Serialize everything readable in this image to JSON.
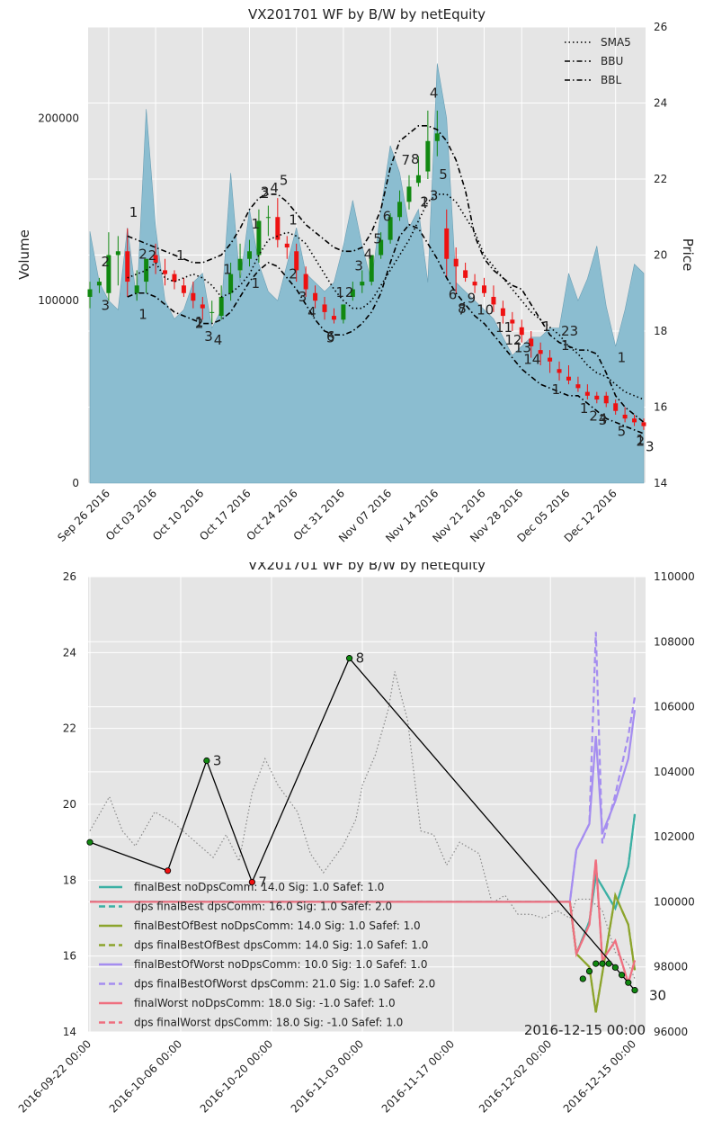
{
  "colors": {
    "plot_bg": "#e5e5e5",
    "grid": "#ffffff",
    "volume_fill": "#8bbdd0",
    "up_candle": "#118811",
    "down_candle": "#ee1111",
    "sma": "#000000",
    "bb": "#000000",
    "equity_path": "#000000",
    "price_dotted": "#888888",
    "final_best": "#3bb0a4",
    "final_best_of_best": "#8ca42c",
    "final_best_of_worst": "#a58df0",
    "final_worst": "#ef6f7f"
  },
  "chart_data": [
    {
      "type": "candlestick",
      "title": "VX201701 WF by B/W by netEquity",
      "ylabel": "Volume",
      "y2label": "Price",
      "ylim": [
        0,
        250000
      ],
      "y2lim": [
        14,
        26
      ],
      "yticks": [
        "0",
        "100000",
        "200000"
      ],
      "y2ticks": [
        "14",
        "16",
        "18",
        "20",
        "22",
        "24",
        "26"
      ],
      "xticks": [
        "Sep 26 2016",
        "Oct 03 2016",
        "Oct 10 2016",
        "Oct 17 2016",
        "Oct 24 2016",
        "Oct 31 2016",
        "Nov 07 2016",
        "Nov 14 2016",
        "Nov 21 2016",
        "Nov 28 2016",
        "Dec 05 2016",
        "Dec 12 2016"
      ],
      "legend": [
        "SMA5",
        "BBU",
        "BBL"
      ],
      "legend_position": "top-right",
      "grid": true,
      "x": [
        "2016-09-22",
        "2016-09-23",
        "2016-09-26",
        "2016-09-27",
        "2016-09-28",
        "2016-09-29",
        "2016-09-30",
        "2016-10-03",
        "2016-10-04",
        "2016-10-05",
        "2016-10-06",
        "2016-10-07",
        "2016-10-10",
        "2016-10-11",
        "2016-10-12",
        "2016-10-13",
        "2016-10-14",
        "2016-10-17",
        "2016-10-18",
        "2016-10-19",
        "2016-10-20",
        "2016-10-21",
        "2016-10-24",
        "2016-10-25",
        "2016-10-26",
        "2016-10-27",
        "2016-10-28",
        "2016-10-31",
        "2016-11-01",
        "2016-11-02",
        "2016-11-03",
        "2016-11-04",
        "2016-11-07",
        "2016-11-08",
        "2016-11-09",
        "2016-11-10",
        "2016-11-11",
        "2016-11-14",
        "2016-11-15",
        "2016-11-16",
        "2016-11-17",
        "2016-11-18",
        "2016-11-21",
        "2016-11-22",
        "2016-11-23",
        "2016-11-25",
        "2016-11-28",
        "2016-11-29",
        "2016-11-30",
        "2016-12-01",
        "2016-12-02",
        "2016-12-05",
        "2016-12-06",
        "2016-12-07",
        "2016-12-08",
        "2016-12-09",
        "2016-12-12",
        "2016-12-13",
        "2016-12-14",
        "2016-12-15"
      ],
      "open": [
        18.9,
        19.2,
        19.0,
        20.0,
        20.1,
        19.0,
        19.3,
        20.0,
        19.6,
        19.5,
        19.2,
        19.0,
        18.7,
        18.5,
        18.4,
        19.0,
        19.6,
        19.9,
        20.0,
        21.0,
        21.0,
        20.3,
        20.1,
        19.5,
        19.0,
        18.7,
        18.4,
        18.3,
        18.9,
        19.2,
        19.3,
        20.0,
        20.4,
        21.0,
        21.4,
        21.9,
        22.2,
        23.0,
        20.7,
        19.9,
        19.6,
        19.3,
        19.2,
        18.9,
        18.6,
        18.3,
        18.1,
        17.8,
        17.5,
        17.3,
        17.0,
        16.8,
        16.6,
        16.4,
        16.3,
        16.3,
        16.1,
        15.8,
        15.7,
        15.6
      ],
      "high": [
        19.3,
        19.4,
        20.6,
        20.5,
        20.7,
        19.6,
        19.6,
        20.3,
        19.9,
        19.6,
        19.4,
        19.3,
        18.9,
        18.8,
        19.2,
        19.8,
        20.3,
        20.4,
        21.2,
        21.3,
        21.5,
        20.5,
        20.3,
        19.7,
        19.2,
        18.9,
        18.6,
        18.6,
        19.3,
        19.6,
        20.0,
        20.6,
        21.1,
        21.7,
        22.1,
        22.6,
        23.8,
        23.8,
        21.2,
        20.2,
        19.8,
        19.5,
        19.4,
        19.2,
        18.8,
        18.5,
        18.3,
        18.0,
        17.7,
        17.5,
        17.2,
        17.1,
        16.8,
        16.6,
        16.4,
        16.4,
        16.2,
        16.0,
        15.8,
        15.7
      ],
      "low": [
        18.6,
        19.0,
        18.8,
        19.2,
        18.9,
        18.8,
        19.0,
        19.5,
        19.2,
        19.1,
        18.9,
        18.6,
        18.3,
        18.2,
        18.3,
        18.8,
        19.4,
        19.7,
        19.8,
        20.5,
        20.2,
        19.9,
        19.3,
        18.9,
        18.6,
        18.3,
        18.2,
        18.2,
        18.8,
        19.0,
        19.2,
        19.9,
        20.3,
        20.9,
        21.2,
        21.8,
        22.0,
        22.6,
        19.4,
        19.0,
        19.3,
        19.0,
        18.9,
        18.5,
        18.2,
        18.0,
        17.7,
        17.3,
        17.1,
        16.9,
        16.7,
        16.6,
        16.4,
        16.2,
        16.1,
        16.0,
        15.8,
        15.6,
        15.5,
        15.4
      ],
      "close": [
        19.1,
        19.3,
        20.0,
        20.1,
        19.3,
        19.2,
        19.9,
        19.8,
        19.5,
        19.3,
        19.0,
        18.8,
        18.6,
        18.5,
        18.9,
        19.5,
        19.9,
        20.1,
        20.9,
        21.0,
        20.4,
        20.2,
        19.6,
        19.1,
        18.8,
        18.5,
        18.3,
        18.7,
        19.1,
        19.3,
        20.0,
        20.4,
        21.0,
        21.4,
        21.8,
        22.1,
        23.0,
        23.2,
        19.9,
        19.7,
        19.4,
        19.2,
        19.0,
        18.7,
        18.4,
        18.2,
        17.9,
        17.6,
        17.4,
        17.2,
        16.9,
        16.7,
        16.5,
        16.3,
        16.2,
        16.1,
        15.9,
        15.7,
        15.6,
        15.5
      ],
      "volume": [
        138000,
        110000,
        100000,
        95000,
        140000,
        100000,
        205000,
        140000,
        100000,
        90000,
        95000,
        110000,
        115000,
        85000,
        95000,
        170000,
        110000,
        150000,
        120000,
        105000,
        100000,
        120000,
        140000,
        115000,
        110000,
        105000,
        110000,
        130000,
        155000,
        130000,
        110000,
        150000,
        185000,
        170000,
        140000,
        150000,
        110000,
        230000,
        200000,
        110000,
        105000,
        100000,
        95000,
        90000,
        80000,
        70000,
        75000,
        80000,
        80000,
        85000,
        85000,
        115000,
        100000,
        112000,
        130000,
        97000,
        75000,
        95000,
        120000,
        115000
      ],
      "sma5": [
        null,
        null,
        null,
        null,
        19.4,
        19.5,
        19.6,
        19.8,
        19.4,
        19.3,
        19.4,
        19.5,
        19.4,
        19.2,
        18.9,
        19.0,
        19.2,
        19.5,
        20.0,
        20.4,
        20.5,
        20.6,
        20.5,
        20.3,
        19.9,
        19.5,
        19.1,
        18.8,
        18.6,
        18.6,
        18.8,
        19.2,
        19.6,
        20.0,
        20.4,
        20.9,
        21.4,
        21.6,
        21.6,
        21.4,
        21.0,
        20.6,
        20.0,
        19.7,
        19.4,
        19.1,
        18.8,
        18.5,
        18.3,
        18.1,
        17.9,
        17.6,
        17.4,
        17.1,
        16.9,
        16.8,
        16.6,
        16.4,
        16.3,
        16.2
      ],
      "bbu": [
        null,
        null,
        null,
        null,
        20.5,
        20.4,
        20.3,
        20.2,
        20.1,
        20.0,
        19.9,
        19.8,
        19.8,
        19.9,
        20.0,
        20.3,
        20.7,
        21.2,
        21.5,
        21.6,
        21.6,
        21.4,
        21.1,
        20.8,
        20.6,
        20.4,
        20.2,
        20.1,
        20.1,
        20.2,
        20.6,
        21.2,
        22.3,
        23.0,
        23.2,
        23.4,
        23.4,
        23.3,
        23.0,
        22.5,
        21.7,
        20.5,
        19.9,
        19.6,
        19.4,
        19.2,
        19.1,
        18.7,
        18.3,
        17.9,
        17.7,
        17.6,
        17.5,
        17.5,
        17.4,
        16.9,
        16.3,
        16.0,
        15.8,
        15.6
      ],
      "bbl": [
        null,
        null,
        null,
        null,
        18.9,
        19.0,
        19.0,
        18.9,
        18.7,
        18.5,
        18.4,
        18.3,
        18.2,
        18.2,
        18.3,
        18.5,
        18.9,
        19.3,
        19.6,
        19.8,
        19.7,
        19.4,
        19.1,
        18.7,
        18.3,
        18.0,
        17.9,
        17.9,
        18.0,
        18.2,
        18.5,
        19.0,
        19.8,
        20.5,
        20.8,
        20.7,
        20.3,
        19.9,
        19.4,
        19.0,
        18.7,
        18.4,
        18.2,
        17.9,
        17.6,
        17.3,
        17.0,
        16.8,
        16.6,
        16.5,
        16.4,
        16.3,
        16.3,
        16.1,
        15.9,
        15.7,
        15.6,
        15.5,
        15.4,
        15.3
      ],
      "annotations": [
        "1",
        "2",
        "3",
        "4",
        "5",
        "6",
        "7",
        "8",
        "9",
        "10",
        "11",
        "12",
        "13",
        "14",
        "23",
        "30"
      ]
    },
    {
      "type": "line",
      "title": "VX201701 WF by B/W by netEquity",
      "ylim": [
        14,
        26
      ],
      "y2lim": [
        96000,
        110000
      ],
      "yticks": [
        "14",
        "16",
        "18",
        "20",
        "22",
        "24",
        "26"
      ],
      "y2ticks": [
        "96000",
        "98000",
        "100000",
        "102000",
        "104000",
        "106000",
        "108000",
        "110000"
      ],
      "xticks": [
        "2016-09-22 00:00",
        "2016-10-06 00:00",
        "2016-10-20 00:00",
        "2016-11-03 00:00",
        "2016-11-17 00:00",
        "2016-12-02 00:00",
        "2016-12-15 00:00"
      ],
      "corner_label": "2016-12-15 00:00",
      "legend_position": "lower-left",
      "grid": true,
      "equity_path": {
        "x": [
          "2016-09-22",
          "2016-10-04",
          "2016-10-10",
          "2016-10-17",
          "2016-11-01",
          "2016-12-15"
        ],
        "y": [
          19.0,
          18.25,
          21.15,
          17.95,
          23.85,
          15.1
        ],
        "labels": [
          "",
          "",
          "3",
          "7",
          "8",
          "30"
        ]
      },
      "signal_points": {
        "x": [
          "2016-12-07",
          "2016-12-08",
          "2016-12-09",
          "2016-12-10",
          "2016-12-11",
          "2016-12-12",
          "2016-12-13",
          "2016-12-14"
        ],
        "y": [
          15.4,
          15.6,
          15.8,
          15.8,
          15.8,
          15.7,
          15.5,
          15.3
        ]
      },
      "series": [
        {
          "name": "finalBest noDpsComm: 14.0 Sig: 1.0 Safef: 1.0",
          "style": "solid",
          "x": [
            "2016-09-22",
            "2016-12-05",
            "2016-12-06",
            "2016-12-08",
            "2016-12-09",
            "2016-12-12",
            "2016-12-14",
            "2016-12-15"
          ],
          "y": [
            100000,
            100000,
            98400,
            99400,
            100800,
            99800,
            101100,
            102700
          ]
        },
        {
          "name": "dps finalBest dpsComm: 16.0 Sig: 1.0 Safef: 2.0",
          "style": "dashed",
          "x": [
            "2016-09-22",
            "2016-12-05",
            "2016-12-06",
            "2016-12-08",
            "2016-12-09",
            "2016-12-12",
            "2016-12-14",
            "2016-12-15"
          ],
          "y": [
            100000,
            100000,
            98400,
            99400,
            100800,
            99800,
            101100,
            102700
          ]
        },
        {
          "name": "finalBestOfBest noDpsComm: 14.0 Sig: 1.0 Safef: 1.0",
          "style": "solid",
          "x": [
            "2016-09-22",
            "2016-12-05",
            "2016-12-06",
            "2016-12-08",
            "2016-12-09",
            "2016-12-12",
            "2016-12-14",
            "2016-12-15"
          ],
          "y": [
            100000,
            100000,
            98400,
            98000,
            96600,
            100200,
            99300,
            97900
          ]
        },
        {
          "name": "dps finalBestOfBest dpsComm: 14.0 Sig: 1.0 Safef: 1.0",
          "style": "dashed",
          "x": [
            "2016-09-22",
            "2016-12-05",
            "2016-12-06",
            "2016-12-08",
            "2016-12-09",
            "2016-12-12",
            "2016-12-14",
            "2016-12-15"
          ],
          "y": [
            100000,
            100000,
            98400,
            98000,
            96600,
            100200,
            99300,
            97900
          ]
        },
        {
          "name": "finalBestOfWorst noDpsComm: 10.0 Sig: 1.0 Safef: 1.0",
          "style": "solid",
          "x": [
            "2016-09-22",
            "2016-12-05",
            "2016-12-06",
            "2016-12-08",
            "2016-12-09",
            "2016-12-10",
            "2016-12-12",
            "2016-12-14",
            "2016-12-15"
          ],
          "y": [
            100000,
            100000,
            101600,
            102400,
            105100,
            102100,
            103100,
            104400,
            105900
          ]
        },
        {
          "name": "dps finalBestOfWorst dpsComm: 21.0 Sig: 1.0 Safef: 2.0",
          "style": "dashed",
          "x": [
            "2016-09-22",
            "2016-12-05",
            "2016-12-06",
            "2016-12-08",
            "2016-12-09",
            "2016-12-10",
            "2016-12-12",
            "2016-12-14",
            "2016-12-15"
          ],
          "y": [
            100000,
            100000,
            101600,
            102400,
            108300,
            101800,
            103300,
            105100,
            106300
          ]
        },
        {
          "name": "finalWorst noDpsComm: 18.0 Sig: -1.0 Safef: 1.0",
          "style": "solid",
          "x": [
            "2016-09-22",
            "2016-12-05",
            "2016-12-06",
            "2016-12-08",
            "2016-12-09",
            "2016-12-10",
            "2016-12-12",
            "2016-12-14",
            "2016-12-15"
          ],
          "y": [
            100000,
            100000,
            98400,
            99300,
            101300,
            98200,
            98800,
            97500,
            98200
          ]
        },
        {
          "name": "dps finalWorst dpsComm: 18.0 Sig: -1.0 Safef: 1.0",
          "style": "dashed",
          "x": [
            "2016-09-22",
            "2016-12-05",
            "2016-12-06",
            "2016-12-08",
            "2016-12-09",
            "2016-12-10",
            "2016-12-12",
            "2016-12-14",
            "2016-12-15"
          ],
          "y": [
            100000,
            100000,
            98400,
            99300,
            101300,
            98200,
            98800,
            97500,
            98200
          ]
        }
      ],
      "price_dotted": {
        "x": [
          "2016-09-22",
          "2016-09-25",
          "2016-09-27",
          "2016-09-29",
          "2016-10-02",
          "2016-10-05",
          "2016-10-07",
          "2016-10-09",
          "2016-10-11",
          "2016-10-13",
          "2016-10-15",
          "2016-10-17",
          "2016-10-19",
          "2016-10-21",
          "2016-10-24",
          "2016-10-26",
          "2016-10-28",
          "2016-10-31",
          "2016-11-02",
          "2016-11-03",
          "2016-11-05",
          "2016-11-07",
          "2016-11-08",
          "2016-11-10",
          "2016-11-12",
          "2016-11-14",
          "2016-11-16",
          "2016-11-18",
          "2016-11-21",
          "2016-11-23",
          "2016-11-25",
          "2016-11-27",
          "2016-11-29",
          "2016-12-01",
          "2016-12-03",
          "2016-12-05",
          "2016-12-06",
          "2016-12-08",
          "2016-12-10",
          "2016-12-12",
          "2016-12-14",
          "2016-12-15"
        ],
        "y": [
          19.3,
          20.2,
          19.3,
          18.9,
          19.8,
          19.5,
          19.2,
          18.9,
          18.6,
          19.2,
          18.5,
          20.3,
          21.2,
          20.5,
          19.8,
          18.7,
          18.2,
          18.9,
          19.6,
          20.5,
          21.3,
          22.5,
          23.5,
          22.2,
          19.3,
          19.2,
          18.4,
          19.0,
          18.7,
          17.4,
          17.6,
          17.1,
          17.1,
          17.0,
          17.2,
          17.0,
          17.5,
          17.5,
          17.2,
          16.1,
          15.8,
          15.4
        ]
      }
    }
  ]
}
